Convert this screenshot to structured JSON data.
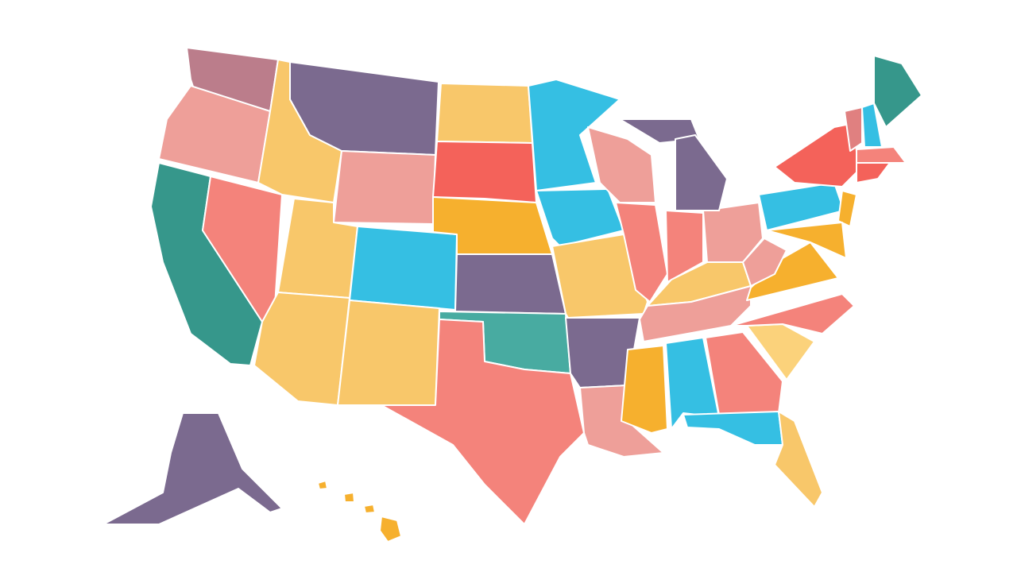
{
  "map": {
    "regions": [
      {
        "color": "#bb7d8b"
      },
      {
        "color": "#ee9f99"
      },
      {
        "color": "#36978b"
      },
      {
        "color": "#f4837b"
      },
      {
        "color": "#f8c76a"
      },
      {
        "color": "#7b6a8f"
      },
      {
        "color": "#ee9f99"
      },
      {
        "color": "#f8c76a"
      },
      {
        "color": "#f8c76a"
      },
      {
        "color": "#35bfe3"
      },
      {
        "color": "#f8c76a"
      },
      {
        "color": "#f8c76a"
      },
      {
        "color": "#f4625a"
      },
      {
        "color": "#f6b02e"
      },
      {
        "color": "#7b6a8f"
      },
      {
        "color": "#48aba1"
      },
      {
        "color": "#f4837b"
      },
      {
        "color": "#35bfe3"
      },
      {
        "color": "#35bfe3"
      },
      {
        "color": "#f8c76a"
      },
      {
        "color": "#7b6a8f"
      },
      {
        "color": "#ee9f99"
      },
      {
        "color": "#ee9f99"
      },
      {
        "color": "#f4837b"
      },
      {
        "color": "#7b6a8f"
      },
      {
        "color": "#f4837b"
      },
      {
        "color": "#ee9f99"
      },
      {
        "color": "#f8c76a"
      },
      {
        "color": "#ee9f99"
      },
      {
        "color": "#f6b02e"
      },
      {
        "color": "#35bfe3"
      },
      {
        "color": "#f4837b"
      },
      {
        "color": "#35bfe3"
      },
      {
        "color": "#f8c76a"
      },
      {
        "color": "#fbd27b"
      },
      {
        "color": "#f4837b"
      },
      {
        "color": "#f6b02e"
      },
      {
        "color": "#ee9f99"
      },
      {
        "color": "#35bfe3"
      },
      {
        "color": "#f4625a"
      },
      {
        "color": "#f6b02e"
      },
      {
        "color": "#f6b02e"
      },
      {
        "color": "#e08080"
      },
      {
        "color": "#35bfe3"
      },
      {
        "color": "#36978b"
      },
      {
        "color": "#f4837b"
      },
      {
        "color": "#f4625a"
      },
      {
        "color": "#7b6a8f"
      },
      {
        "color": "#f6b02e"
      }
    ]
  }
}
